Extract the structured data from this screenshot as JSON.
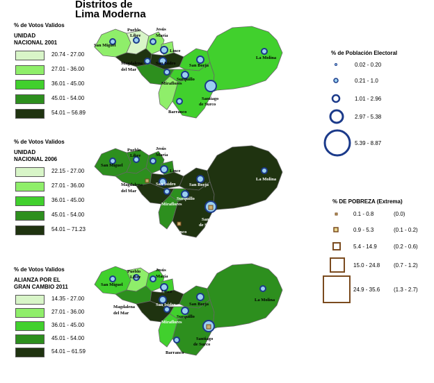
{
  "title_line1": "Distritos de",
  "title_line2": "Lima Moderna",
  "maps": [
    {
      "legend_heading": "% de Votos Validos",
      "legend_subtitle_1": "UNIDAD",
      "legend_subtitle_2": "NACIONAL 2001",
      "classes": [
        {
          "label": "20.74 - 27.00",
          "color": "#d8f5c8"
        },
        {
          "label": "27.01 - 36.00",
          "color": "#8fee6a"
        },
        {
          "label": "36.01 - 45.00",
          "color": "#41d02d"
        },
        {
          "label": "45.01 - 54.00",
          "color": "#2d8f1e"
        },
        {
          "label": "54.01 – 56.89",
          "color": "#1f3310"
        }
      ]
    },
    {
      "legend_heading": "% de Votos Validos",
      "legend_subtitle_1": "UNIDAD",
      "legend_subtitle_2": "NACIONAL 2006",
      "classes": [
        {
          "label": "22.15 - 27.00",
          "color": "#d8f5c8"
        },
        {
          "label": "27.01 - 36.00",
          "color": "#8fee6a"
        },
        {
          "label": "36.01 - 45.00",
          "color": "#41d02d"
        },
        {
          "label": "45.01 - 54.00",
          "color": "#2d8f1e"
        },
        {
          "label": "54.01 – 71.23",
          "color": "#1f3310"
        }
      ]
    },
    {
      "legend_heading": "% de Votos Validos",
      "legend_subtitle_1": "ALIANZA POR EL",
      "legend_subtitle_2": "GRAN CAMBIO  2011",
      "classes": [
        {
          "label": "14.35 - 27.00",
          "color": "#d8f5c8"
        },
        {
          "label": "27.01 - 36.00",
          "color": "#8fee6a"
        },
        {
          "label": "36.01 - 45.00",
          "color": "#41d02d"
        },
        {
          "label": "45.01 - 54.00",
          "color": "#2d8f1e"
        },
        {
          "label": "54.01 – 61.59",
          "color": "#1f3310"
        }
      ]
    }
  ],
  "district_labels": {
    "san_miguel": "San Miguel",
    "pueblo_libre_1": "Pueblo",
    "pueblo_libre_2": "Libre",
    "jesus_maria_1": "Jesús",
    "jesus_maria_2": "María",
    "lince": "Lince",
    "magdalena_1": "Magdalena",
    "magdalena_2": "del Mar",
    "san_isidro": "San Isidro",
    "san_borja": "San Borja",
    "la_molina": "La Molina",
    "surquillo": "Surquillo",
    "miraflores": "Miraflores",
    "surco_1": "Santiago",
    "surco_2": "de Surco",
    "barranco": "Barranco"
  },
  "electoral_legend": {
    "heading": "% de Población Electoral",
    "classes": [
      "0.02 - 0.20",
      "0.21 - 1.0",
      "1.01 - 2.96",
      "2.97 - 5.38",
      "5.39 - 8.87"
    ],
    "color": "#1b3a8a"
  },
  "poverty_legend": {
    "heading": "% DE POBREZA (Extrema)",
    "classes": [
      {
        "range": "0.1 - 0.8",
        "extreme": "(0.0)"
      },
      {
        "range": "0.9 - 5.3",
        "extreme": "(0.1 - 0.2)"
      },
      {
        "range": "5.4 - 14.9",
        "extreme": "(0.2 - 0.6)"
      },
      {
        "range": "15.0 - 24.8",
        "extreme": "(0.7 - 1.2)"
      },
      {
        "range": "24.9 - 35.6",
        "extreme": "(1.3 - 2.7)"
      }
    ],
    "color": "#7a4a1e"
  }
}
